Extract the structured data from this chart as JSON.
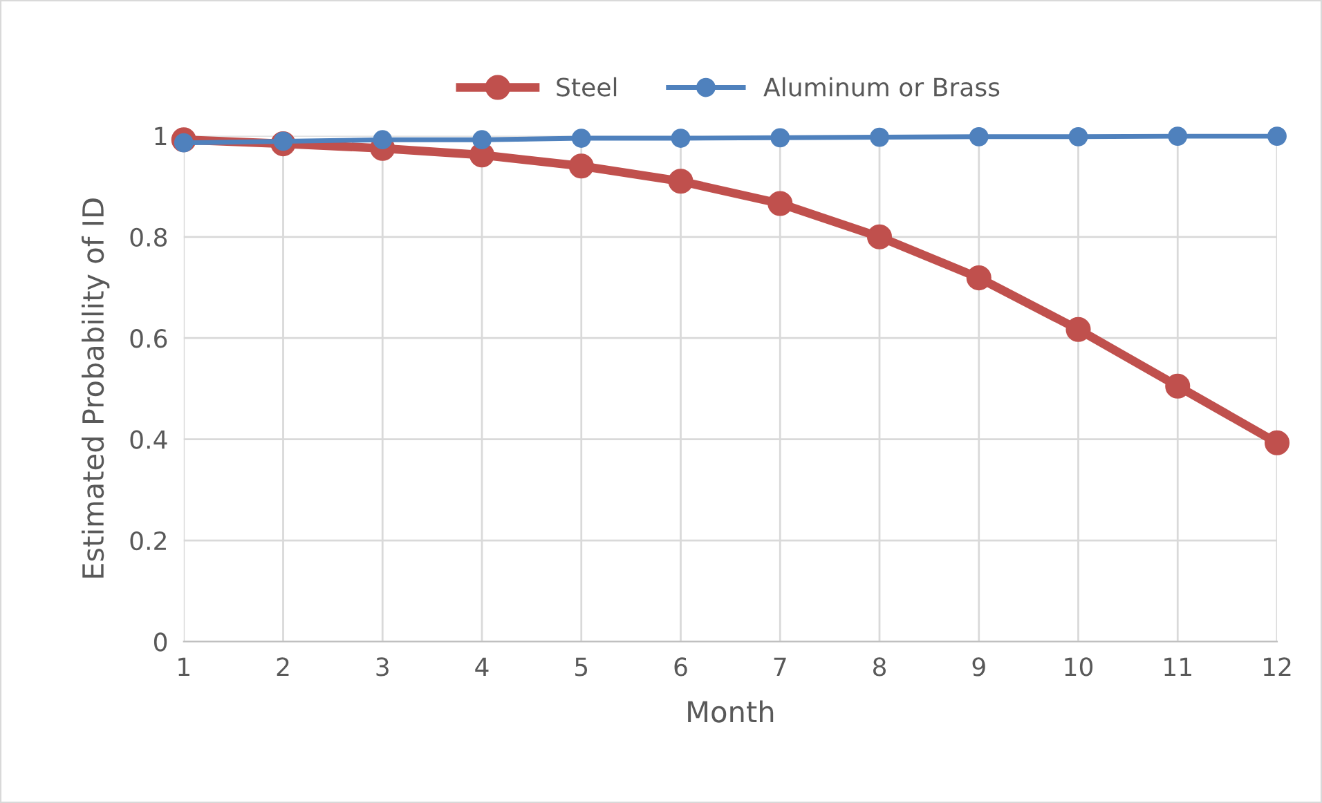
{
  "chart_data": {
    "type": "line",
    "xlabel": "Month",
    "ylabel": "Estimated Probability of ID",
    "x": [
      1,
      2,
      3,
      4,
      5,
      6,
      7,
      8,
      9,
      10,
      11,
      12
    ],
    "series": [
      {
        "name": "Steel",
        "color": "#c0504d",
        "values": [
          0.992,
          0.984,
          0.975,
          0.962,
          0.94,
          0.91,
          0.866,
          0.8,
          0.719,
          0.617,
          0.505,
          0.393
        ]
      },
      {
        "name": "Aluminum or Brass",
        "color": "#4f81bd",
        "values": [
          0.986,
          0.989,
          0.992,
          0.992,
          0.995,
          0.995,
          0.996,
          0.997,
          0.998,
          0.998,
          0.999,
          0.999
        ]
      }
    ],
    "xlim": [
      1,
      12
    ],
    "xticks": [
      1,
      2,
      3,
      4,
      5,
      6,
      7,
      8,
      9,
      10,
      11,
      12
    ],
    "ylim": [
      0,
      1
    ],
    "yticks": [
      0,
      0.2,
      0.4,
      0.6,
      0.8,
      1
    ],
    "grid": true,
    "legend": "top",
    "marker": "circle",
    "line_style": "solid"
  }
}
